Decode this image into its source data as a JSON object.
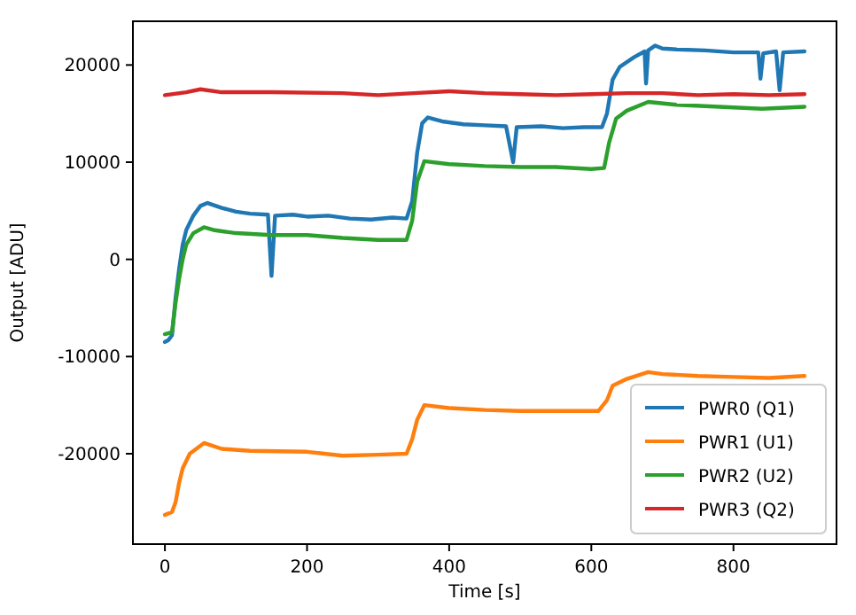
{
  "chart_data": {
    "type": "line",
    "xlabel": "Time [s]",
    "ylabel": "Output [ADU]",
    "xlim": [
      -45,
      945
    ],
    "ylim": [
      -29300,
      24500
    ],
    "xticks": [
      0,
      200,
      400,
      600,
      800
    ],
    "yticks": [
      -20000,
      -10000,
      0,
      10000,
      20000
    ],
    "grid": false,
    "legend": "bottom right",
    "line_style": "solid",
    "marker": "none",
    "series": [
      {
        "name": "PWR0 (Q1)",
        "color": "#1f77b4",
        "x": [
          0,
          5,
          10,
          15,
          20,
          25,
          30,
          40,
          50,
          60,
          80,
          100,
          120,
          145,
          150,
          155,
          180,
          200,
          230,
          260,
          290,
          320,
          340,
          348,
          355,
          362,
          370,
          390,
          420,
          450,
          480,
          490,
          495,
          530,
          560,
          590,
          615,
          622,
          630,
          640,
          660,
          675,
          677,
          680,
          690,
          700,
          720,
          760,
          800,
          835,
          838,
          842,
          860,
          865,
          870,
          900
        ],
        "values": [
          -8500,
          -8300,
          -7800,
          -4000,
          -1000,
          1500,
          3000,
          4500,
          5500,
          5800,
          5300,
          4900,
          4700,
          4600,
          -1700,
          4500,
          4600,
          4400,
          4500,
          4200,
          4100,
          4300,
          4200,
          6000,
          11000,
          14000,
          14600,
          14200,
          13900,
          13800,
          13700,
          10000,
          13600,
          13700,
          13500,
          13600,
          13600,
          15000,
          18500,
          19800,
          20800,
          21400,
          18100,
          21500,
          22000,
          21700,
          21600,
          21500,
          21300,
          21300,
          18600,
          21200,
          21400,
          17400,
          21300,
          21400
        ]
      },
      {
        "name": "PWR1 (U1)",
        "color": "#ff7f0e",
        "x": [
          0,
          10,
          15,
          20,
          25,
          35,
          55,
          80,
          120,
          200,
          250,
          300,
          340,
          348,
          355,
          365,
          400,
          450,
          500,
          550,
          610,
          622,
          630,
          650,
          680,
          700,
          750,
          800,
          850,
          900
        ],
        "values": [
          -26300,
          -26000,
          -25000,
          -23000,
          -21500,
          -20000,
          -18900,
          -19500,
          -19700,
          -19800,
          -20200,
          -20100,
          -20000,
          -18500,
          -16500,
          -15000,
          -15300,
          -15500,
          -15600,
          -15600,
          -15600,
          -14500,
          -13000,
          -12300,
          -11600,
          -11800,
          -12000,
          -12100,
          -12200,
          -12000
        ]
      },
      {
        "name": "PWR2 (U2)",
        "color": "#2ca02c",
        "x": [
          0,
          10,
          15,
          20,
          25,
          30,
          40,
          55,
          70,
          100,
          150,
          200,
          250,
          300,
          340,
          348,
          355,
          365,
          400,
          450,
          500,
          550,
          600,
          618,
          625,
          635,
          650,
          680,
          720,
          780,
          840,
          900
        ],
        "values": [
          -7700,
          -7500,
          -4500,
          -2000,
          0,
          1500,
          2700,
          3300,
          3000,
          2700,
          2500,
          2500,
          2200,
          2000,
          2000,
          4000,
          8000,
          10100,
          9800,
          9600,
          9500,
          9500,
          9300,
          9400,
          12000,
          14500,
          15300,
          16200,
          15900,
          15700,
          15500,
          15700
        ]
      },
      {
        "name": "PWR3 (Q2)",
        "color": "#d62728",
        "x": [
          0,
          30,
          50,
          80,
          150,
          250,
          300,
          350,
          400,
          450,
          500,
          550,
          600,
          650,
          700,
          750,
          800,
          850,
          900
        ],
        "values": [
          16900,
          17200,
          17500,
          17200,
          17200,
          17100,
          16900,
          17100,
          17300,
          17100,
          17000,
          16900,
          17000,
          17100,
          17100,
          16900,
          17000,
          16900,
          17000
        ]
      }
    ]
  }
}
